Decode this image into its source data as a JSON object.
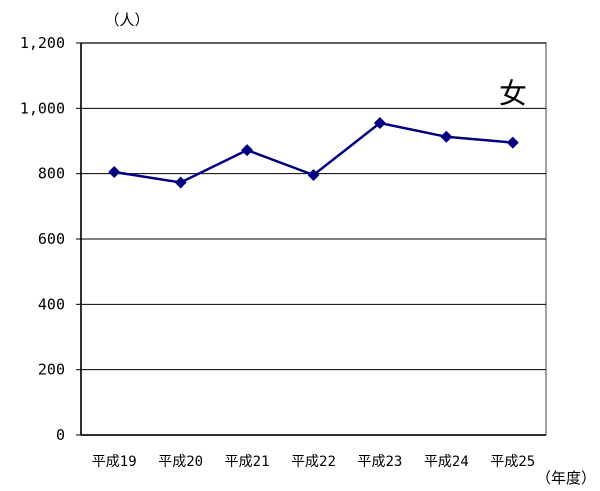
{
  "chart_data": {
    "type": "line",
    "y_unit_label": "（人）",
    "x_unit_label": "（年度）",
    "series_label": "女",
    "categories": [
      "平成19",
      "平成20",
      "平成21",
      "平成22",
      "平成23",
      "平成24",
      "平成25"
    ],
    "series": [
      {
        "name": "女",
        "values": [
          805,
          773,
          872,
          796,
          955,
          913,
          895
        ]
      }
    ],
    "ylim": [
      0,
      1200
    ],
    "yticks": [
      0,
      200,
      400,
      600,
      800,
      1000,
      1200
    ],
    "ytick_labels": [
      "0",
      "200",
      "400",
      "600",
      "800",
      "1,000",
      "1,200"
    ],
    "grid": true,
    "line_color": "#000080",
    "marker": "diamond"
  }
}
